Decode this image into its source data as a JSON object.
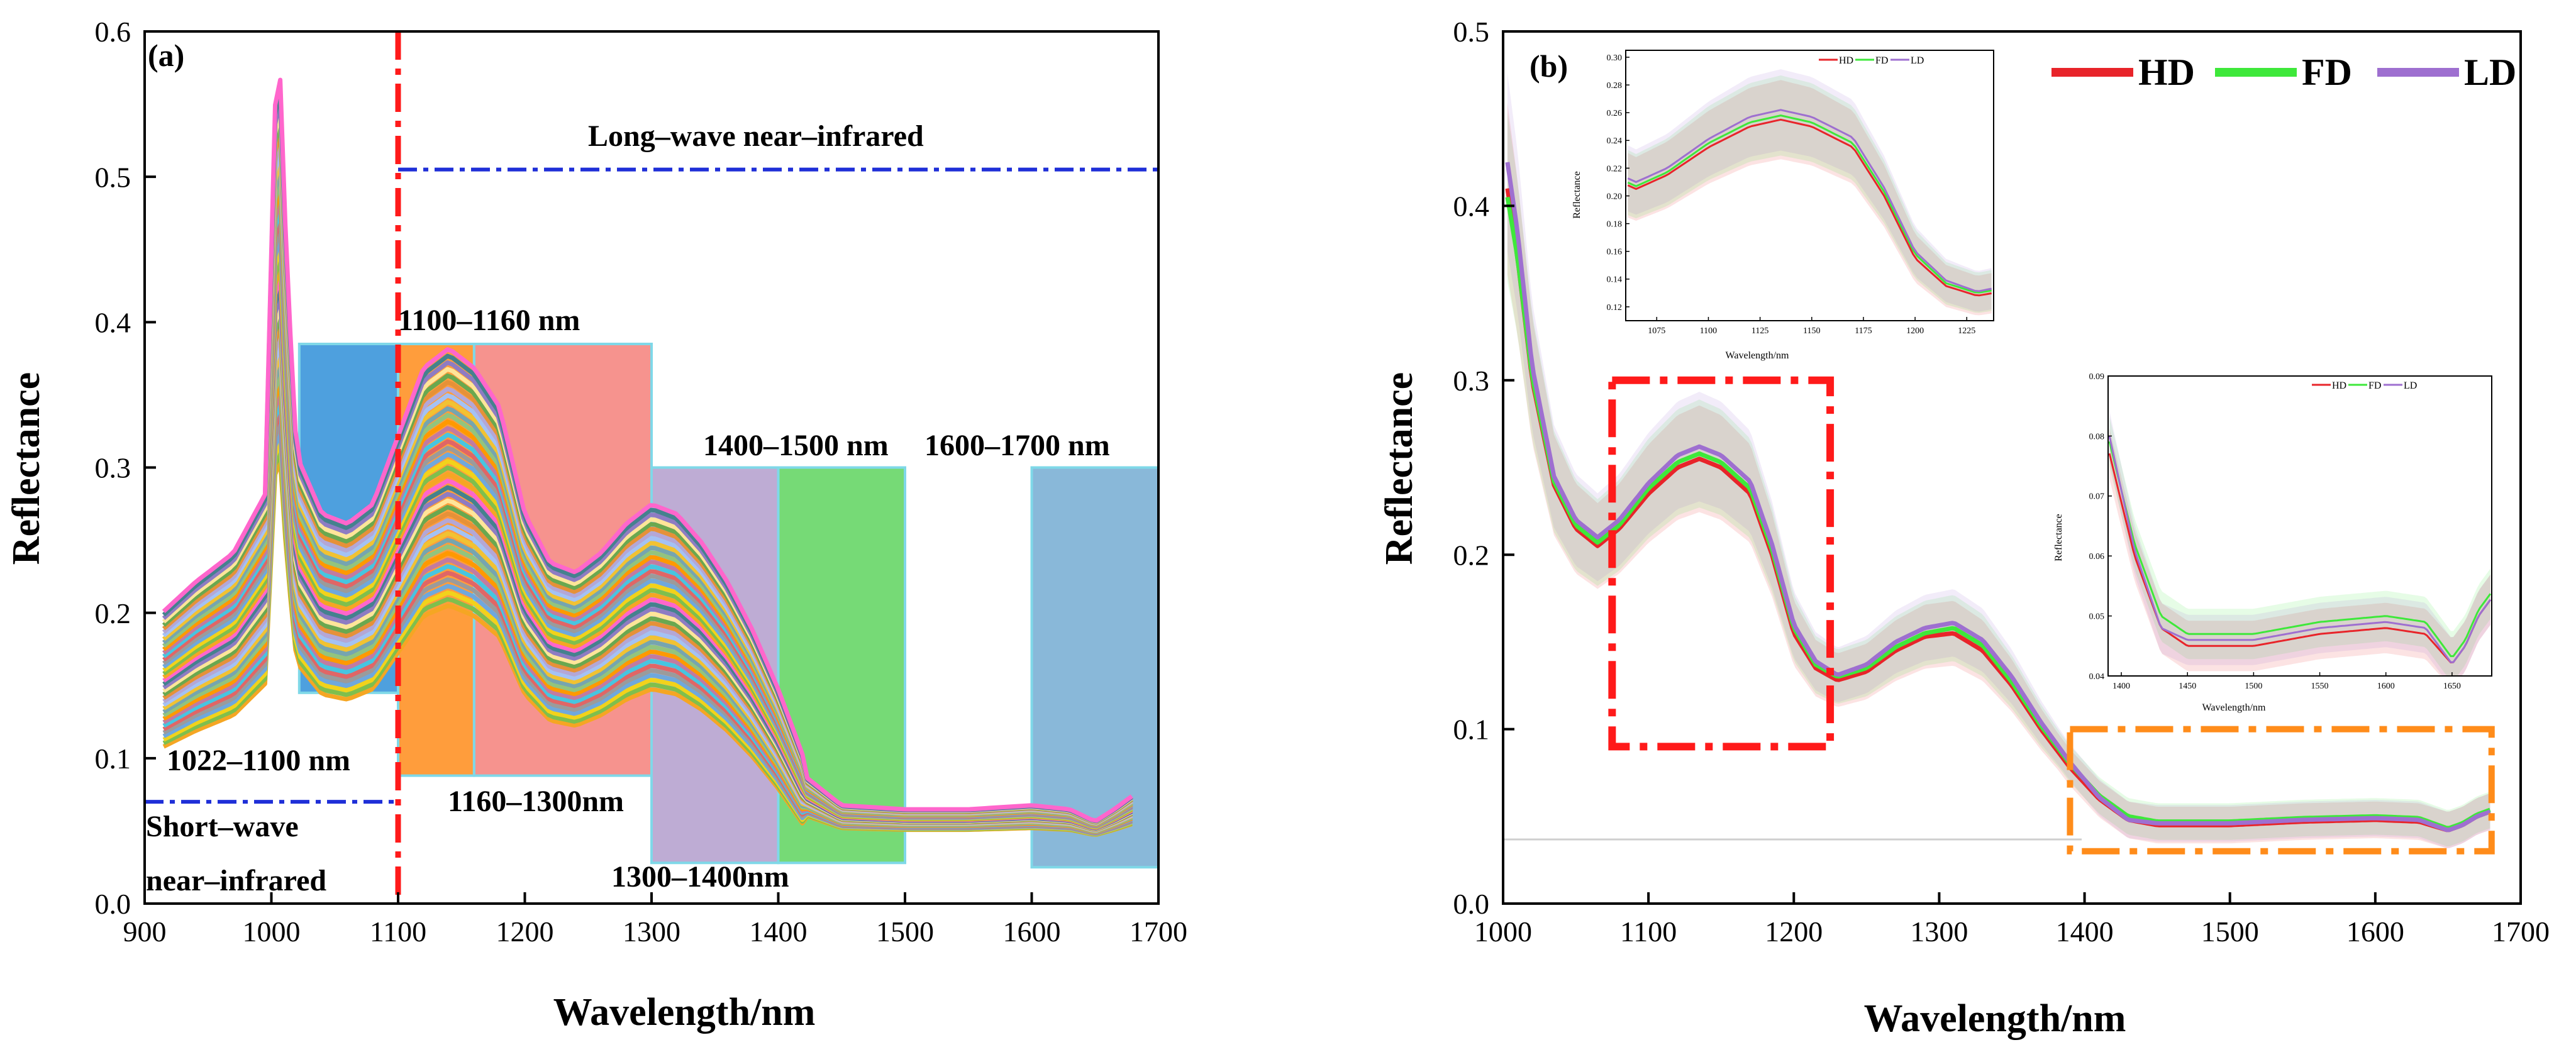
{
  "figure": {
    "panel_a_label": "(a)",
    "panel_b_label": "(b)"
  },
  "chart_data": [
    {
      "id": "a",
      "type": "line",
      "title": "(a)",
      "xlabel": "Wavelength/nm",
      "ylabel": "Reflectance",
      "xlim": [
        900,
        1700
      ],
      "ylim": [
        0.0,
        0.6
      ],
      "xticks": [
        900,
        1000,
        1100,
        1200,
        1300,
        1400,
        1500,
        1600,
        1700
      ],
      "yticks": [
        0.0,
        0.1,
        0.2,
        0.3,
        0.4,
        0.5,
        0.6
      ],
      "ytick_labels": [
        "0.0",
        "0.1",
        "0.2",
        "0.3",
        "0.4",
        "0.5",
        "0.6"
      ],
      "spectra_count": 40,
      "base_spectrum": {
        "x": [
          915,
          940,
          970,
          995,
          1005,
          1012,
          1020,
          1040,
          1060,
          1080,
          1100,
          1120,
          1140,
          1160,
          1180,
          1200,
          1220,
          1240,
          1260,
          1280,
          1300,
          1320,
          1340,
          1360,
          1380,
          1400,
          1420,
          1450,
          1500,
          1550,
          1600,
          1630,
          1650,
          1665,
          1680
        ],
        "y": [
          0.15,
          0.165,
          0.18,
          0.21,
          0.46,
          0.33,
          0.23,
          0.2,
          0.195,
          0.205,
          0.24,
          0.275,
          0.285,
          0.275,
          0.255,
          0.2,
          0.175,
          0.17,
          0.18,
          0.195,
          0.205,
          0.2,
          0.185,
          0.165,
          0.14,
          0.11,
          0.075,
          0.06,
          0.058,
          0.058,
          0.06,
          0.058,
          0.052,
          0.058,
          0.065
        ]
      },
      "spectra_y_range_at_1140": [
        0.2,
        0.38
      ],
      "colors": [
        "#f5a623",
        "#7fbf4d",
        "#f2d21b",
        "#6fa8dc",
        "#9b9b9b",
        "#e06666",
        "#47c5e0",
        "#c27ba0",
        "#ff9900",
        "#93c47d",
        "#76a5af",
        "#f1c232",
        "#a4c2f4",
        "#b4a7d6",
        "#e69138",
        "#6aa84f",
        "#ffe599",
        "#8e7cc3",
        "#45818e",
        "#ff66cc"
      ],
      "highlight_bands": [
        {
          "x0": 1022,
          "x1": 1100,
          "y0": 0.145,
          "y1": 0.385,
          "color": "#2f8fd8"
        },
        {
          "x0": 1100,
          "x1": 1160,
          "y0": 0.088,
          "y1": 0.385,
          "color": "#ff8c1a"
        },
        {
          "x0": 1160,
          "x1": 1300,
          "y0": 0.088,
          "y1": 0.385,
          "color": "#f4807a"
        },
        {
          "x0": 1300,
          "x1": 1400,
          "y0": 0.028,
          "y1": 0.3,
          "color": "#b39dcc"
        },
        {
          "x0": 1400,
          "x1": 1500,
          "y0": 0.028,
          "y1": 0.3,
          "color": "#5ed35e"
        },
        {
          "x0": 1600,
          "x1": 1700,
          "y0": 0.025,
          "y1": 0.3,
          "color": "#74acd2"
        }
      ],
      "annotations": {
        "long_wave": "Long–wave near–infrared",
        "short_wave_1": "Short–wave",
        "short_wave_2": "near–infrared",
        "band_1022_1100": "1022–1100 nm",
        "band_1100_1160": "1100–1160 nm",
        "band_1160_1300": "1160–1300nm",
        "band_1300_1400": "1300–1400nm",
        "band_1400_1500": "1400–1500 nm",
        "band_1600_1700": "1600–1700 nm"
      },
      "divider_x": 1100,
      "long_wave_line_y": 0.505,
      "short_wave_line_y": 0.07
    },
    {
      "id": "b",
      "type": "line",
      "title": "(b)",
      "xlabel": "Wavelength/nm",
      "ylabel": "Reflectance",
      "xlim": [
        1000,
        1700
      ],
      "ylim": [
        0.0,
        0.5
      ],
      "xticks": [
        1000,
        1100,
        1200,
        1300,
        1400,
        1500,
        1600,
        1700
      ],
      "yticks": [
        0.0,
        0.1,
        0.2,
        0.3,
        0.4,
        0.5
      ],
      "ytick_labels": [
        "0.0",
        "0.1",
        "0.2",
        "0.3",
        "0.4",
        "0.5"
      ],
      "legend": [
        "HD",
        "FD",
        "LD"
      ],
      "series": [
        {
          "name": "HD",
          "color": "#e8242a",
          "x": [
            1003,
            1010,
            1020,
            1035,
            1050,
            1065,
            1080,
            1100,
            1120,
            1135,
            1150,
            1170,
            1185,
            1200,
            1215,
            1230,
            1250,
            1270,
            1290,
            1310,
            1330,
            1350,
            1370,
            1390,
            1410,
            1430,
            1450,
            1500,
            1550,
            1600,
            1630,
            1650,
            1660,
            1670,
            1680
          ],
          "y": [
            0.41,
            0.37,
            0.3,
            0.24,
            0.215,
            0.205,
            0.215,
            0.235,
            0.25,
            0.255,
            0.25,
            0.235,
            0.2,
            0.155,
            0.135,
            0.128,
            0.133,
            0.145,
            0.153,
            0.155,
            0.145,
            0.125,
            0.1,
            0.078,
            0.06,
            0.048,
            0.045,
            0.045,
            0.047,
            0.048,
            0.047,
            0.042,
            0.045,
            0.05,
            0.053
          ]
        },
        {
          "name": "FD",
          "color": "#3ee83a",
          "x": [
            1003,
            1010,
            1020,
            1035,
            1050,
            1065,
            1080,
            1100,
            1120,
            1135,
            1150,
            1170,
            1185,
            1200,
            1215,
            1230,
            1250,
            1270,
            1290,
            1310,
            1330,
            1350,
            1370,
            1390,
            1410,
            1430,
            1450,
            1500,
            1550,
            1600,
            1630,
            1650,
            1660,
            1670,
            1680
          ],
          "y": [
            0.405,
            0.37,
            0.302,
            0.242,
            0.217,
            0.207,
            0.217,
            0.238,
            0.253,
            0.258,
            0.253,
            0.238,
            0.203,
            0.158,
            0.137,
            0.13,
            0.135,
            0.147,
            0.155,
            0.158,
            0.148,
            0.127,
            0.102,
            0.08,
            0.062,
            0.05,
            0.047,
            0.047,
            0.049,
            0.05,
            0.049,
            0.043,
            0.046,
            0.051,
            0.054
          ]
        },
        {
          "name": "LD",
          "color": "#9e6fd0",
          "x": [
            1003,
            1010,
            1020,
            1035,
            1050,
            1065,
            1080,
            1100,
            1120,
            1135,
            1150,
            1170,
            1185,
            1200,
            1215,
            1230,
            1250,
            1270,
            1290,
            1310,
            1330,
            1350,
            1370,
            1390,
            1410,
            1430,
            1450,
            1500,
            1550,
            1600,
            1630,
            1650,
            1660,
            1670,
            1680
          ],
          "y": [
            0.425,
            0.385,
            0.308,
            0.245,
            0.22,
            0.21,
            0.22,
            0.241,
            0.257,
            0.262,
            0.257,
            0.242,
            0.206,
            0.16,
            0.139,
            0.131,
            0.137,
            0.15,
            0.158,
            0.161,
            0.151,
            0.13,
            0.104,
            0.081,
            0.061,
            0.048,
            0.046,
            0.046,
            0.048,
            0.049,
            0.048,
            0.042,
            0.045,
            0.05,
            0.053
          ]
        }
      ],
      "uncertainty_band_halfwidth": 0.03,
      "zoom_box_1": {
        "x0": 1075,
        "x1": 1225,
        "y0": 0.09,
        "y1": 0.3
      },
      "zoom_box_2": {
        "x0": 1390,
        "x1": 1680,
        "y0": 0.03,
        "y1": 0.1
      }
    },
    {
      "id": "b-inset-1",
      "type": "line",
      "xlabel": "Wavelength/nm",
      "ylabel": "Reflectance",
      "xlim": [
        1060,
        1238
      ],
      "ylim": [
        0.11,
        0.305
      ],
      "xticks": [
        1075,
        1100,
        1125,
        1150,
        1175,
        1200,
        1225
      ],
      "yticks": [
        0.12,
        0.14,
        0.16,
        0.18,
        0.2,
        0.22,
        0.24,
        0.26,
        0.28,
        0.3
      ],
      "ytick_labels": [
        "0.12",
        "0.14",
        "0.16",
        "0.18",
        "0.20",
        "0.22",
        "0.24",
        "0.26",
        "0.28",
        "0.30"
      ],
      "legend": [
        "HD",
        "FD",
        "LD"
      ]
    },
    {
      "id": "b-inset-2",
      "type": "line",
      "xlabel": "Wavelength/nm",
      "ylabel": "Reflectance",
      "xlim": [
        1390,
        1680
      ],
      "ylim": [
        0.04,
        0.09
      ],
      "xticks": [
        1400,
        1450,
        1500,
        1550,
        1600,
        1650
      ],
      "yticks": [
        0.04,
        0.05,
        0.06,
        0.07,
        0.08,
        0.09
      ],
      "ytick_labels": [
        "0.04",
        "0.05",
        "0.06",
        "0.07",
        "0.08",
        "0.09"
      ],
      "legend": [
        "HD",
        "FD",
        "LD"
      ]
    }
  ]
}
